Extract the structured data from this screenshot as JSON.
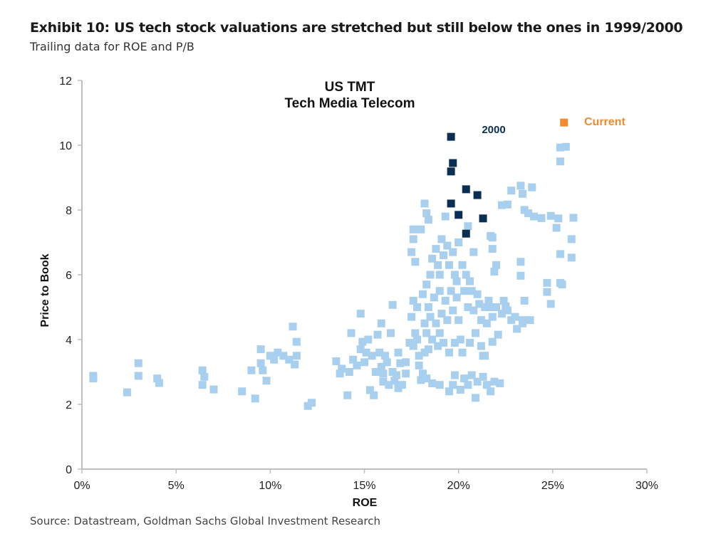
{
  "header": {
    "title": "Exhibit 10: US tech stock valuations are stretched but still below the ones in 1999/2000",
    "subtitle": "Trailing data for ROE and P/B"
  },
  "footer": {
    "source": "Source: Datastream, Goldman Sachs Global Investment Research"
  },
  "chart_data": {
    "type": "scatter",
    "title": "US TMT",
    "subtitle": "Tech Media Telecom",
    "xlabel": "ROE",
    "ylabel": "Price to Book",
    "xlim": [
      0,
      30
    ],
    "ylim": [
      0,
      12
    ],
    "x_ticks": [
      "0%",
      "5%",
      "10%",
      "15%",
      "20%",
      "25%",
      "30%"
    ],
    "x_tick_values": [
      0,
      5,
      10,
      15,
      20,
      25,
      30
    ],
    "y_ticks": [
      "0",
      "2",
      "4",
      "6",
      "8",
      "10",
      "12"
    ],
    "y_tick_values": [
      0,
      2,
      4,
      6,
      8,
      10,
      12
    ],
    "grid": false,
    "colors": {
      "history": "#a9cfee",
      "y2000": "#0b2f52",
      "current": "#f28a30",
      "axis": "#bfbfbf"
    },
    "annotations": [
      {
        "text": "2000",
        "color": "#0b2f52"
      },
      {
        "text": "Current",
        "color": "#f28a30"
      }
    ],
    "series": [
      {
        "key": "history",
        "points": [
          [
            0.6,
            2.88
          ],
          [
            0.6,
            2.8
          ],
          [
            2.4,
            2.37
          ],
          [
            3.0,
            3.27
          ],
          [
            3.0,
            2.88
          ],
          [
            4.0,
            2.8
          ],
          [
            4.1,
            2.66
          ],
          [
            6.4,
            3.05
          ],
          [
            6.5,
            2.85
          ],
          [
            6.4,
            2.6
          ],
          [
            7.0,
            2.46
          ],
          [
            8.5,
            2.4
          ],
          [
            9.0,
            3.05
          ],
          [
            9.2,
            2.18
          ],
          [
            9.5,
            3.7
          ],
          [
            9.5,
            3.27
          ],
          [
            9.6,
            3.05
          ],
          [
            9.8,
            2.73
          ],
          [
            10.0,
            3.5
          ],
          [
            10.2,
            3.38
          ],
          [
            10.4,
            3.6
          ],
          [
            10.7,
            3.5
          ],
          [
            11.0,
            3.38
          ],
          [
            11.2,
            4.4
          ],
          [
            11.3,
            3.23
          ],
          [
            11.4,
            3.93
          ],
          [
            11.4,
            3.5
          ],
          [
            12.0,
            1.95
          ],
          [
            12.2,
            2.05
          ],
          [
            13.5,
            3.33
          ],
          [
            13.7,
            2.95
          ],
          [
            14.1,
            2.28
          ],
          [
            14.3,
            4.2
          ],
          [
            14.4,
            3.38
          ],
          [
            14.8,
            4.8
          ],
          [
            14.9,
            3.93
          ],
          [
            15.1,
            3.6
          ],
          [
            15.3,
            2.44
          ],
          [
            15.5,
            2.28
          ],
          [
            15.7,
            4.15
          ],
          [
            15.8,
            3.6
          ],
          [
            15.9,
            3.16
          ],
          [
            16.0,
            2.95
          ],
          [
            16.1,
            3.5
          ],
          [
            16.3,
            2.6
          ],
          [
            16.5,
            5.07
          ],
          [
            16.6,
            2.73
          ],
          [
            16.8,
            2.5
          ],
          [
            16.9,
            3.27
          ],
          [
            17.2,
            2.95
          ],
          [
            17.6,
            7.4
          ],
          [
            17.6,
            7.1
          ],
          [
            17.5,
            6.7
          ],
          [
            17.7,
            6.4
          ],
          [
            18.0,
            7.4
          ],
          [
            18.2,
            8.2
          ],
          [
            18.4,
            7.7
          ],
          [
            18.3,
            7.9
          ],
          [
            17.6,
            5.2
          ],
          [
            17.8,
            5.0
          ],
          [
            17.5,
            4.7
          ],
          [
            17.7,
            4.2
          ],
          [
            17.8,
            4.0
          ],
          [
            17.6,
            3.8
          ],
          [
            17.9,
            3.5
          ],
          [
            18.1,
            5.4
          ],
          [
            18.3,
            5.7
          ],
          [
            18.5,
            6.0
          ],
          [
            18.6,
            6.5
          ],
          [
            18.9,
            6.3
          ],
          [
            19.0,
            6.0
          ],
          [
            19.2,
            6.6
          ],
          [
            19.4,
            6.9
          ],
          [
            19.5,
            6.3
          ],
          [
            19.7,
            6.7
          ],
          [
            19.8,
            6.0
          ],
          [
            19.9,
            5.8
          ],
          [
            18.4,
            5.0
          ],
          [
            18.7,
            5.3
          ],
          [
            19.0,
            5.5
          ],
          [
            19.3,
            5.2
          ],
          [
            19.6,
            5.5
          ],
          [
            19.9,
            5.3
          ],
          [
            18.5,
            4.7
          ],
          [
            18.8,
            4.5
          ],
          [
            19.1,
            4.8
          ],
          [
            19.4,
            4.6
          ],
          [
            19.7,
            4.9
          ],
          [
            20.0,
            4.6
          ],
          [
            18.3,
            4.2
          ],
          [
            18.6,
            4.0
          ],
          [
            18.9,
            3.8
          ],
          [
            19.2,
            3.9
          ],
          [
            19.5,
            3.6
          ],
          [
            19.8,
            3.9
          ],
          [
            20.1,
            4.0
          ],
          [
            18.2,
            3.6
          ],
          [
            18.4,
            3.7
          ],
          [
            18.0,
            2.75
          ],
          [
            18.3,
            2.8
          ],
          [
            18.6,
            2.65
          ],
          [
            19.0,
            2.6
          ],
          [
            19.5,
            2.4
          ],
          [
            19.7,
            2.6
          ],
          [
            19.8,
            2.9
          ],
          [
            20.1,
            2.45
          ],
          [
            20.3,
            2.8
          ],
          [
            20.5,
            2.6
          ],
          [
            20.7,
            2.9
          ],
          [
            20.9,
            2.2
          ],
          [
            21.0,
            2.7
          ],
          [
            21.3,
            2.85
          ],
          [
            21.5,
            2.6
          ],
          [
            21.7,
            2.4
          ],
          [
            21.9,
            2.7
          ],
          [
            22.2,
            2.65
          ],
          [
            20.2,
            6.3
          ],
          [
            20.4,
            6.0
          ],
          [
            20.6,
            5.8
          ],
          [
            20.3,
            5.5
          ],
          [
            20.7,
            5.5
          ],
          [
            21.0,
            5.4
          ],
          [
            20.5,
            5.0
          ],
          [
            20.8,
            4.9
          ],
          [
            21.1,
            5.1
          ],
          [
            21.4,
            5.0
          ],
          [
            21.7,
            5.0
          ],
          [
            22.0,
            5.0
          ],
          [
            21.2,
            4.6
          ],
          [
            21.5,
            4.5
          ],
          [
            21.8,
            4.7
          ],
          [
            20.6,
            3.9
          ],
          [
            20.9,
            4.2
          ],
          [
            21.2,
            3.8
          ],
          [
            21.3,
            3.5
          ],
          [
            20.2,
            3.6
          ],
          [
            20.8,
            6.7
          ],
          [
            20.5,
            7.5
          ],
          [
            21.9,
            6.1
          ],
          [
            18.8,
            6.8
          ],
          [
            19.1,
            7.1
          ],
          [
            17.9,
            3.2
          ],
          [
            18.1,
            2.95
          ],
          [
            16.2,
            3.3
          ],
          [
            16.5,
            3.0
          ],
          [
            16.8,
            3.6
          ],
          [
            17.2,
            3.3
          ],
          [
            14.6,
            3.2
          ],
          [
            15.0,
            3.3
          ],
          [
            15.4,
            3.5
          ],
          [
            15.6,
            3.0
          ],
          [
            16.0,
            2.7
          ],
          [
            16.7,
            2.9
          ],
          [
            17.0,
            2.6
          ],
          [
            13.8,
            3.1
          ],
          [
            14.2,
            3.0
          ],
          [
            14.8,
            3.7
          ],
          [
            15.2,
            4.0
          ],
          [
            15.9,
            4.5
          ],
          [
            16.4,
            4.2
          ],
          [
            17.4,
            3.9
          ],
          [
            19.3,
            7.8
          ],
          [
            20.0,
            7.0
          ],
          [
            19.0,
            4.2
          ],
          [
            18.2,
            4.5
          ],
          [
            21.8,
            6.8
          ],
          [
            21.7,
            7.2
          ],
          [
            21.8,
            7.15
          ],
          [
            22.0,
            6.3
          ],
          [
            22.3,
            8.15
          ],
          [
            22.6,
            8.17
          ],
          [
            22.8,
            8.6
          ],
          [
            23.3,
            8.75
          ],
          [
            23.4,
            8.5
          ],
          [
            23.5,
            8.0
          ],
          [
            23.7,
            7.9
          ],
          [
            23.9,
            8.7
          ],
          [
            24.0,
            7.8
          ],
          [
            24.4,
            7.75
          ],
          [
            24.9,
            7.82
          ],
          [
            25.3,
            7.74
          ],
          [
            26.1,
            7.76
          ],
          [
            25.2,
            7.45
          ],
          [
            26.0,
            7.1
          ],
          [
            26.0,
            6.53
          ],
          [
            25.4,
            6.64
          ],
          [
            23.3,
            6.4
          ],
          [
            23.3,
            5.97
          ],
          [
            24.7,
            5.75
          ],
          [
            24.7,
            5.47
          ],
          [
            24.9,
            5.1
          ],
          [
            25.4,
            5.75
          ],
          [
            25.5,
            5.7
          ],
          [
            25.4,
            9.5
          ],
          [
            25.4,
            9.93
          ],
          [
            25.7,
            9.95
          ],
          [
            22.3,
            4.8
          ],
          [
            22.5,
            5.03
          ],
          [
            22.8,
            4.6
          ],
          [
            23.1,
            4.33
          ],
          [
            23.4,
            4.6
          ],
          [
            23.4,
            4.5
          ],
          [
            22.1,
            4.15
          ],
          [
            21.8,
            3.93
          ],
          [
            21.4,
            3.5
          ],
          [
            21.6,
            5.2
          ],
          [
            22.4,
            5.2
          ],
          [
            22.6,
            4.9
          ],
          [
            23.0,
            4.7
          ],
          [
            23.5,
            5.2
          ],
          [
            23.8,
            4.6
          ]
        ]
      },
      {
        "key": "y2000",
        "name": "2000",
        "points": [
          [
            19.6,
            10.26
          ],
          [
            19.7,
            9.45
          ],
          [
            19.6,
            9.19
          ],
          [
            20.4,
            8.64
          ],
          [
            21.0,
            8.46
          ],
          [
            19.6,
            8.2
          ],
          [
            20.0,
            7.85
          ],
          [
            21.3,
            7.74
          ],
          [
            20.4,
            7.27
          ]
        ]
      },
      {
        "key": "current",
        "name": "Current",
        "points": [
          [
            25.6,
            10.7
          ]
        ]
      }
    ]
  }
}
